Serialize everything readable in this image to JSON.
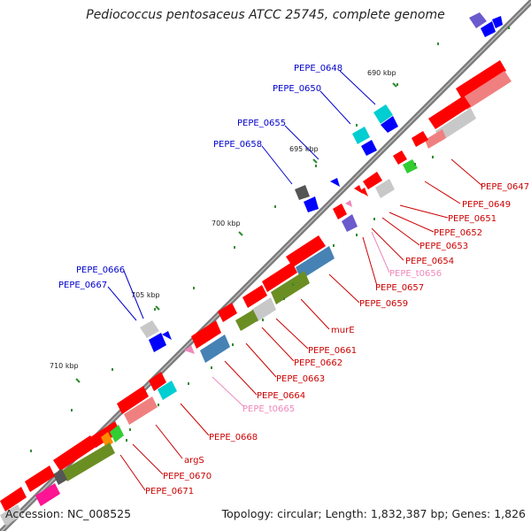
{
  "title": "Pediococcus pentosaceus ATCC 25745, complete genome",
  "footer": {
    "accession": "Accession: NC_008525",
    "summary": "Topology: circular; Length: 1,832,387 bp; Genes: 1,826"
  },
  "ticks": [
    "690 kbp",
    "695 kbp",
    "700 kbp",
    "705 kbp",
    "710 kbp"
  ],
  "colors": {
    "backbone": "#7a7a7a",
    "forward_label": "#0000cc",
    "reverse_label": "#cc0000",
    "trna_label": "#ee88bb",
    "cds": "#ff0000",
    "cds_light": "#f08080",
    "cog_gray": "#c8c8c8",
    "cog_olive": "#6b8e23",
    "cog_steel": "#4682b4",
    "cog_cyan": "#00ced1",
    "cog_blue": "#0000ff",
    "cog_slate": "#6a5acd",
    "cog_orange": "#ff8c00",
    "cog_green": "#32cd32",
    "cog_magenta": "#ff1493",
    "cog_dark": "#555555"
  },
  "labels": {
    "forward": [
      "PEPE_0648",
      "PEPE_0650",
      "PEPE_0655",
      "PEPE_0658",
      "PEPE_0666",
      "PEPE_0667"
    ],
    "reverse": [
      "PEPE_0647",
      "PEPE_0649",
      "PEPE_0651",
      "PEPE_0652",
      "PEPE_0653",
      "PEPE_0654",
      "PEPE_t0656",
      "PEPE_0657",
      "PEPE_0659",
      "murE",
      "PEPE_0661",
      "PEPE_0662",
      "PEPE_0663",
      "PEPE_0664",
      "PEPE_t0665",
      "PEPE_0668",
      "argS",
      "PEPE_0670",
      "PEPE_0671"
    ]
  }
}
